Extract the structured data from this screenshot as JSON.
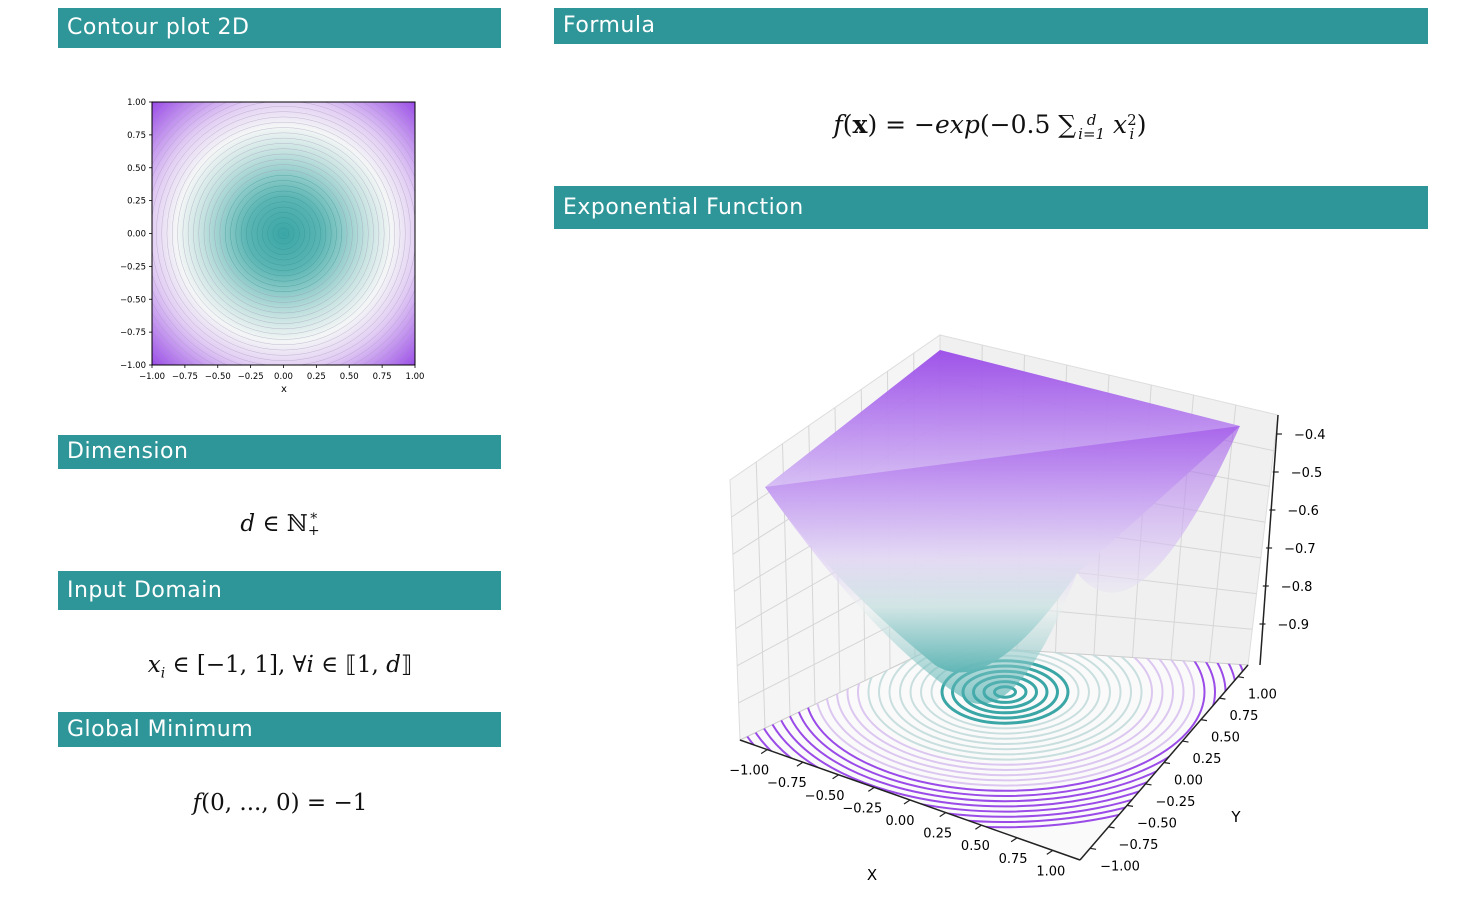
{
  "sections": {
    "contour": {
      "title": "Contour plot 2D"
    },
    "formula": {
      "title": "Formula"
    },
    "dimension": {
      "title": "Dimension"
    },
    "input_domain": {
      "title": "Input Domain"
    },
    "global_minimum": {
      "title": "Global Minimum"
    },
    "surface": {
      "title": "Exponential Function"
    }
  },
  "math": {
    "formula_lhs": "f",
    "formula_x": "x",
    "formula_eq": "= −",
    "formula_exp": "exp",
    "formula_arg": "(−0.5 ∑",
    "formula_sup": "d",
    "formula_sub": "i=1",
    "formula_var": "x",
    "formula_var_sup": "2",
    "formula_var_sub": "i",
    "formula_close": ")",
    "dimension_d": "d",
    "dimension_in": " ∈ ℕ",
    "dimension_sup": "*",
    "dimension_sub": "+",
    "domain_x": "x",
    "domain_sub": "i",
    "domain_rest": " ∈ [−1, 1], ∀",
    "domain_i": "i",
    "domain_rest2": " ∈ ⟦1, ",
    "domain_d": "d",
    "domain_close": "⟧",
    "minimum_f": "f",
    "minimum_rest": "(0, ..., 0) = −1"
  },
  "colors": {
    "header": "#2e9598",
    "teal": "#3aa6a6",
    "white": "#f4f6f6",
    "purple": "#9a4be8"
  },
  "chart_data": [
    {
      "type": "contour",
      "title": "",
      "xlabel": "x",
      "ylabel": "",
      "xlim": [
        -1.0,
        1.0
      ],
      "ylim": [
        -1.0,
        1.0
      ],
      "x_ticks": [
        "−1.00",
        "−0.75",
        "−0.50",
        "−0.25",
        "0.00",
        "0.25",
        "0.50",
        "0.75",
        "1.00"
      ],
      "y_ticks": [
        "1.00",
        "0.75",
        "0.50",
        "0.25",
        "0.00",
        "−0.25",
        "−0.50",
        "−0.75",
        "−1.00"
      ],
      "function": "f(x) = -exp(-0.5 * sum(x_i^2))",
      "levels_min": -1.0,
      "levels_max": -0.37,
      "colormap": [
        "#3aa6a6",
        "#f4f6f6",
        "#9a4be8"
      ]
    },
    {
      "type": "surface3d",
      "title": "",
      "xlabel": "X",
      "ylabel": "Y",
      "x_ticks": [
        "−1.00",
        "−0.75",
        "−0.50",
        "−0.25",
        "0.00",
        "0.25",
        "0.50",
        "0.75",
        "1.00"
      ],
      "y_ticks": [
        "1.00",
        "0.75",
        "0.50",
        "0.25",
        "0.00",
        "−0.25",
        "−0.50",
        "−0.75",
        "−1.00"
      ],
      "z_ticks": [
        "−0.4",
        "−0.5",
        "−0.6",
        "−0.7",
        "−0.8",
        "−0.9"
      ],
      "xlim": [
        -1.0,
        1.0
      ],
      "ylim": [
        -1.0,
        1.0
      ],
      "zlim": [
        -1.0,
        -0.37
      ],
      "function": "f(x) = -exp(-0.5 * sum(x_i^2))"
    }
  ]
}
